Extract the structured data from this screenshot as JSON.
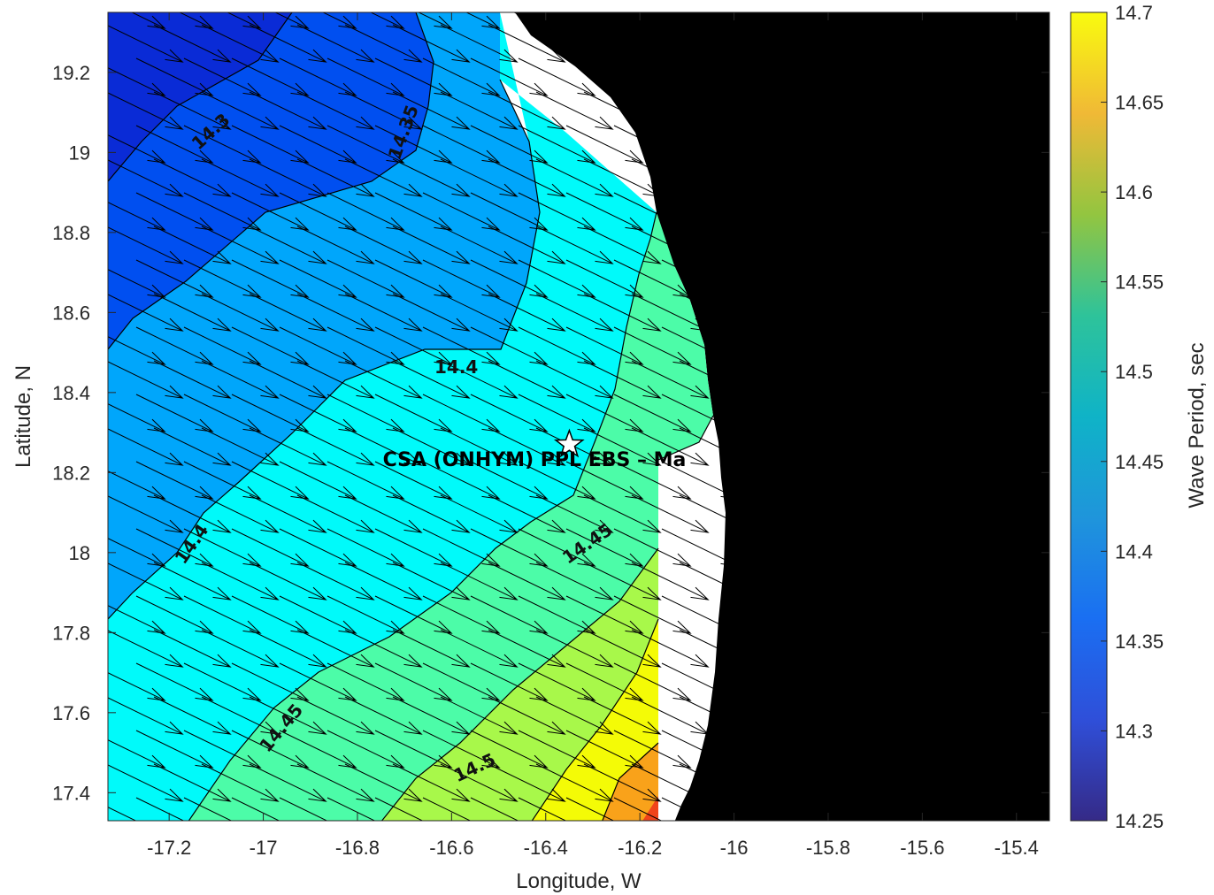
{
  "chart_data": {
    "type": "contour_map_with_vectors",
    "title": "",
    "xlabel": "Longitude, W",
    "ylabel": "Latitude, N",
    "xlim": [
      -17.33,
      -15.33
    ],
    "ylim": [
      17.33,
      19.35
    ],
    "x_ticks": [
      -17.2,
      -17,
      -16.8,
      -16.6,
      -16.4,
      -16.2,
      -16,
      -15.8,
      -15.6,
      -15.4
    ],
    "y_ticks": [
      17.4,
      17.6,
      17.8,
      18,
      18.2,
      18.4,
      18.6,
      18.8,
      19,
      19.2
    ],
    "colorbar": {
      "label": "Wave Period, sec",
      "range": [
        14.25,
        14.7
      ],
      "ticks": [
        14.25,
        14.3,
        14.35,
        14.4,
        14.45,
        14.5,
        14.55,
        14.6,
        14.65,
        14.7
      ],
      "colormap": "parula"
    },
    "contour_labels": [
      {
        "text": "14.3",
        "lon": -17.11,
        "lat": 19.05,
        "angle": -42
      },
      {
        "text": "14.35",
        "lon": -16.7,
        "lat": 19.05,
        "angle": -70
      },
      {
        "text": "14.4",
        "lon": -16.59,
        "lat": 18.46,
        "angle": 0
      },
      {
        "text": "14.4",
        "lon": -17.15,
        "lat": 18.02,
        "angle": -55
      },
      {
        "text": "14.45",
        "lon": -16.31,
        "lat": 18.02,
        "angle": -35
      },
      {
        "text": "14.45",
        "lon": -16.96,
        "lat": 17.56,
        "angle": -50
      },
      {
        "text": "14.5",
        "lon": -16.55,
        "lat": 17.46,
        "angle": -25
      }
    ],
    "site": {
      "label": "CSA (ONHYM) PPL EBS  – Ma",
      "lon": -16.35,
      "lat": 18.27,
      "marker": "star"
    },
    "vector_direction": "toward east-southeast",
    "colors": {
      "land": "#000000",
      "no_data": "#ffffff",
      "contour_line": "#000000",
      "arrow": "#000000"
    }
  }
}
